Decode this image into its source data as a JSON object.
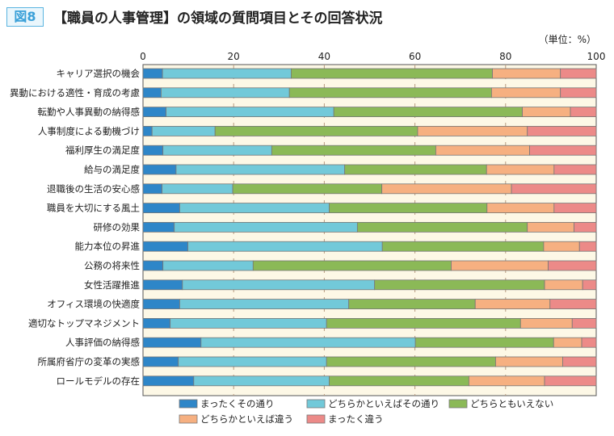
{
  "figure_label": "図8",
  "title": "【職員の人事管理】の領域の質問項目とその回答状況",
  "unit": "（単位：%）",
  "chart_data": {
    "type": "bar",
    "orientation": "horizontal",
    "stacked": true,
    "xlim": [
      0,
      100
    ],
    "xticks": [
      0,
      20,
      40,
      60,
      80,
      100
    ],
    "grid": true,
    "legend_position": "bottom",
    "categories": [
      "キャリア選択の機会",
      "異動における適性・育成の考慮",
      "転勤や人事異動の納得感",
      "人事制度による動機づけ",
      "福利厚生の満足度",
      "給与の満足度",
      "退職後の生活の安心感",
      "職員を大切にする風土",
      "研修の効果",
      "能力本位の昇進",
      "公務の将来性",
      "女性活躍推進",
      "オフィス環境の快適度",
      "適切なトップマネジメント",
      "人事評価の納得感",
      "所属府省庁の変革の実感",
      "ロールモデルの存在"
    ],
    "series": [
      {
        "name": "まったくその通り",
        "color": "#2e86c8",
        "values": [
          4.3,
          4.0,
          5.1,
          2.0,
          4.4,
          7.3,
          4.2,
          8.1,
          6.9,
          9.9,
          4.4,
          8.7,
          8.1,
          6.0,
          12.8,
          7.8,
          11.2
        ]
      },
      {
        "name": "どちらかといえばその通り",
        "color": "#72c9d9",
        "values": [
          28.4,
          28.3,
          37.0,
          13.9,
          24.0,
          37.2,
          15.6,
          33.0,
          40.4,
          42.9,
          19.9,
          42.4,
          37.3,
          34.5,
          47.3,
          32.7,
          29.9
        ]
      },
      {
        "name": "どちらともいえない",
        "color": "#8bb957",
        "values": [
          44.4,
          44.6,
          41.6,
          44.7,
          36.2,
          31.3,
          32.9,
          34.8,
          37.5,
          35.6,
          43.7,
          37.5,
          27.9,
          42.8,
          30.5,
          37.3,
          30.8
        ]
      },
      {
        "name": "どちらかといえば違う",
        "color": "#f6b081",
        "values": [
          15.0,
          15.2,
          10.6,
          24.2,
          20.7,
          14.9,
          28.6,
          14.8,
          10.3,
          7.9,
          21.4,
          8.4,
          16.5,
          11.4,
          6.2,
          14.8,
          16.7
        ]
      },
      {
        "name": "まったく違う",
        "color": "#ec8a88",
        "values": [
          7.9,
          7.9,
          5.7,
          15.2,
          14.7,
          9.3,
          18.7,
          9.3,
          4.9,
          3.7,
          10.6,
          3.0,
          10.2,
          5.3,
          3.2,
          7.4,
          11.4
        ]
      }
    ]
  }
}
